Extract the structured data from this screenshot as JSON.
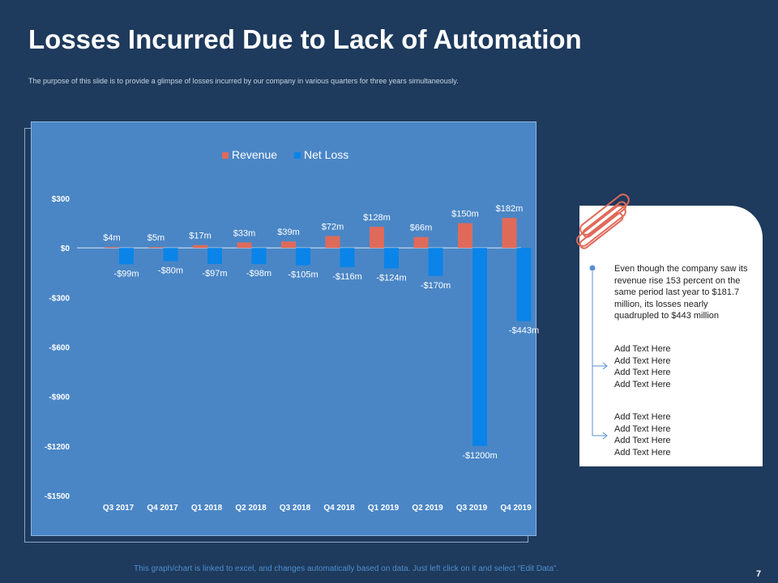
{
  "slide": {
    "title": "Losses Incurred Due to Lack of Automation",
    "subtitle": "The purpose of this slide is to provide a glimpse of losses incurred by our company in various quarters for three years simultaneously.",
    "footer": "This graph/chart is linked to excel, and changes automatically based on data. Just left click on it and select “Edit Data”.",
    "page_number": "7"
  },
  "card": {
    "main_text": "Even though the company saw its revenue rise 153 percent on the same period last year to $181.7 million, its losses nearly quadrupled to $443 million",
    "block_1": [
      "Add Text Here",
      "Add Text Here",
      "Add Text Here",
      "Add Text Here"
    ],
    "block_2": [
      "Add Text Here",
      "Add Text Here",
      "Add Text Here",
      "Add Text Here"
    ]
  },
  "colors": {
    "background": "#1e3a5c",
    "chart_bg": "#4a86c6",
    "revenue": "#e06a5a",
    "net_loss": "#0a84e8",
    "card_bullet": "#5b8ed1"
  },
  "chart_data": {
    "type": "bar",
    "categories": [
      "Q3 2017",
      "Q4 2017",
      "Q1 2018",
      "Q2 2018",
      "Q3 2018",
      "Q4 2018",
      "Q1 2019",
      "Q2 2019",
      "Q3 2019",
      "Q4 2019"
    ],
    "series": [
      {
        "name": "Revenue",
        "values": [
          4,
          5,
          17,
          33,
          39,
          72,
          128,
          66,
          150,
          182
        ],
        "labels": [
          "$4m",
          "$5m",
          "$17m",
          "$33m",
          "$39m",
          "$72m",
          "$128m",
          "$66m",
          "$150m",
          "$182m"
        ]
      },
      {
        "name": "Net Loss",
        "values": [
          -99,
          -80,
          -97,
          -98,
          -105,
          -116,
          -124,
          -170,
          -1200,
          -443
        ],
        "labels": [
          "-$99m",
          "-$80m",
          "-$97m",
          "-$98m",
          "-$105m",
          "-$116m",
          "-$124m",
          "-$170m",
          "-$1200m",
          "-$443m"
        ]
      }
    ],
    "y_ticks": [
      300,
      0,
      -300,
      -600,
      -900,
      -1200,
      -1500
    ],
    "y_tick_labels": [
      "$300",
      "$0",
      "-$300",
      "-$600",
      "-$900",
      "-$1200",
      "-$1500"
    ],
    "ylim": [
      -1500,
      300
    ],
    "legend": [
      "Revenue",
      "Net Loss"
    ],
    "legend_position": "top-center",
    "grid": false
  }
}
